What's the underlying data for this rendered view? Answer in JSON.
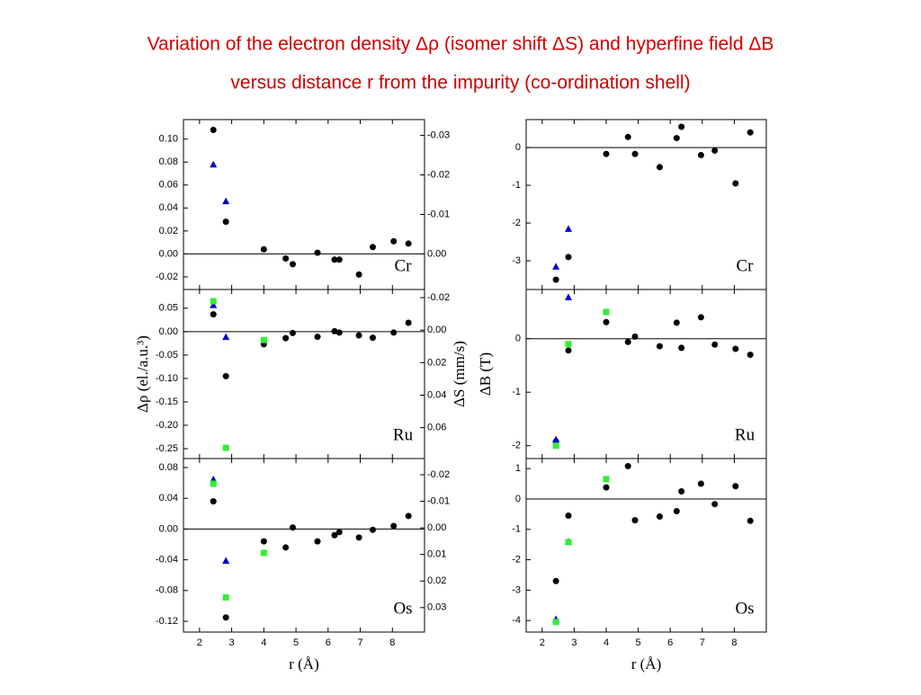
{
  "title": [
    "Variation of the electron density Δρ (isomer shift ΔS) and hyperfine field ΔB",
    "versus distance r from the impurity (co-ordination shell)"
  ],
  "chart_data": [
    {
      "type": "scatter",
      "annotation": "Cr",
      "xlim": [
        1.5,
        9
      ],
      "xticks": [
        2,
        3,
        4,
        5,
        6,
        7,
        8
      ],
      "ylim": [
        -0.031,
        0.117
      ],
      "yticks": [
        {
          "value": 0.1,
          "label": "0.10"
        },
        0.08,
        0.06,
        0.04,
        0.02,
        {
          "value": 0,
          "label": "0.00"
        },
        -0.02
      ],
      "y2lim": [
        0.009,
        -0.034
      ],
      "y2ticks": [
        -0.03,
        -0.02,
        -0.01,
        {
          "value": 0,
          "label": "0.00"
        }
      ],
      "series": [
        {
          "color": "#000000",
          "marker": "circle",
          "x": [
            2.43,
            2.82,
            4.0,
            4.68,
            4.9,
            5.67,
            6.2,
            6.35,
            6.96,
            7.39,
            8.04,
            8.5
          ],
          "values": [
            0.108,
            0.028,
            0.004,
            -0.004,
            -0.009,
            0.001,
            -0.005,
            -0.005,
            -0.018,
            0.006,
            0.011,
            0.009
          ]
        },
        {
          "color": "#0000cc",
          "marker": "triangle",
          "x": [
            2.43,
            2.82
          ],
          "values": [
            0.078,
            0.046
          ]
        }
      ]
    },
    {
      "type": "scatter",
      "annotation": "Ru",
      "xlim": [
        1.5,
        9
      ],
      "xticks": [
        2,
        3,
        4,
        5,
        6,
        7,
        8
      ],
      "ylim": [
        -0.271,
        0.09
      ],
      "yticks": [
        0.05,
        {
          "value": 0,
          "label": "0.00"
        },
        -0.05,
        {
          "value": -0.1,
          "label": "-0.10"
        },
        -0.15,
        {
          "value": -0.2,
          "label": "-0.20"
        },
        -0.25
      ],
      "y2lim": [
        0.079,
        -0.025
      ],
      "y2ticks": [
        -0.02,
        {
          "value": 0,
          "label": "0.00"
        },
        0.02,
        0.04,
        0.06
      ],
      "ylabel": "Δρ (el./a.u.³)",
      "y2label": "ΔS (mm/s)",
      "series": [
        {
          "color": "#000000",
          "marker": "circle",
          "x": [
            2.43,
            2.82,
            4.0,
            4.68,
            4.9,
            5.67,
            6.2,
            6.35,
            6.96,
            7.39,
            8.04,
            8.5
          ],
          "values": [
            0.037,
            -0.095,
            -0.027,
            -0.014,
            -0.003,
            -0.011,
            0.001,
            -0.002,
            -0.008,
            -0.013,
            -0.002,
            0.019
          ]
        },
        {
          "color": "#0000cc",
          "marker": "triangle",
          "x": [
            2.43,
            2.82
          ],
          "values": [
            0.057,
            -0.011
          ]
        },
        {
          "color": "#33ee33",
          "marker": "square",
          "x": [
            2.43,
            2.82,
            4.0
          ],
          "values": [
            0.065,
            -0.248,
            -0.018
          ]
        }
      ]
    },
    {
      "type": "scatter",
      "annotation": "Os",
      "xlim": [
        1.5,
        9
      ],
      "xticks": [
        2,
        3,
        4,
        5,
        6,
        7,
        8
      ],
      "xlabel": "r (Å)",
      "ylim": [
        -0.134,
        0.0917
      ],
      "yticks": [
        0.08,
        0.04,
        {
          "value": 0,
          "label": "0.00"
        },
        -0.04,
        -0.08,
        -0.12
      ],
      "y2lim": [
        0.0392,
        -0.0261
      ],
      "y2ticks": [
        -0.02,
        -0.01,
        {
          "value": 0,
          "label": "0.00"
        },
        0.01,
        0.02,
        0.03
      ],
      "series": [
        {
          "color": "#000000",
          "marker": "circle",
          "x": [
            2.43,
            2.82,
            4.0,
            4.68,
            4.9,
            5.67,
            6.2,
            6.35,
            6.96,
            7.39,
            8.04,
            8.5
          ],
          "values": [
            0.036,
            -0.115,
            -0.016,
            -0.024,
            0.002,
            -0.016,
            -0.008,
            -0.004,
            -0.011,
            -0.001,
            0.004,
            0.017
          ]
        },
        {
          "color": "#0000cc",
          "marker": "triangle",
          "x": [
            2.43,
            2.82
          ],
          "values": [
            0.065,
            -0.041
          ]
        },
        {
          "color": "#33ee33",
          "marker": "square",
          "x": [
            2.43,
            2.82,
            4.0
          ],
          "values": [
            0.059,
            -0.089,
            -0.031
          ]
        }
      ]
    },
    {
      "type": "scatter",
      "annotation": "Cr",
      "xlim": [
        1.5,
        9
      ],
      "xticks": [
        2,
        3,
        4,
        5,
        6,
        7,
        8
      ],
      "ylim": [
        -3.76,
        0.74
      ],
      "yticks": [
        0,
        -1,
        -2,
        -3
      ],
      "series": [
        {
          "color": "#000000",
          "marker": "circle",
          "x": [
            2.43,
            2.82,
            4.0,
            4.68,
            4.9,
            5.67,
            6.2,
            6.35,
            6.96,
            7.39,
            8.04,
            8.5
          ],
          "values": [
            -3.5,
            -2.9,
            -0.17,
            0.28,
            -0.17,
            -0.52,
            0.25,
            0.55,
            -0.2,
            -0.08,
            -0.95,
            0.4
          ]
        },
        {
          "color": "#0000cc",
          "marker": "triangle",
          "x": [
            2.43,
            2.82
          ],
          "values": [
            -3.15,
            -2.15
          ]
        }
      ]
    },
    {
      "type": "scatter",
      "annotation": "Ru",
      "xlim": [
        1.5,
        9
      ],
      "xticks": [
        2,
        3,
        4,
        5,
        6,
        7,
        8
      ],
      "ylim": [
        -2.24,
        0.92
      ],
      "yticks": [
        0,
        -1,
        -2
      ],
      "ylabel": "ΔB (T)",
      "series": [
        {
          "color": "#000000",
          "marker": "circle",
          "x": [
            2.43,
            2.82,
            4.0,
            4.68,
            4.9,
            5.67,
            6.2,
            6.35,
            6.96,
            7.39,
            8.04,
            8.5
          ],
          "values": [
            -1.92,
            -0.22,
            0.31,
            -0.06,
            0.04,
            -0.14,
            0.3,
            -0.17,
            0.4,
            -0.11,
            -0.19,
            -0.3
          ]
        },
        {
          "color": "#0000cc",
          "marker": "triangle",
          "x": [
            2.43,
            2.82
          ],
          "values": [
            -1.88,
            0.78
          ]
        },
        {
          "color": "#33ee33",
          "marker": "square",
          "x": [
            2.43,
            2.82,
            4.0
          ],
          "values": [
            -2.0,
            -0.1,
            0.5
          ]
        }
      ]
    },
    {
      "type": "scatter",
      "annotation": "Os",
      "xlim": [
        1.5,
        9
      ],
      "xticks": [
        2,
        3,
        4,
        5,
        6,
        7,
        8
      ],
      "xlabel": "r (Å)",
      "ylim": [
        -4.38,
        1.33
      ],
      "yticks": [
        1,
        0,
        -1,
        -2,
        -3,
        -4
      ],
      "series": [
        {
          "color": "#000000",
          "marker": "circle",
          "x": [
            2.43,
            2.82,
            4.0,
            4.68,
            4.9,
            5.67,
            6.2,
            6.35,
            6.96,
            7.39,
            8.04,
            8.5
          ],
          "values": [
            -2.7,
            -0.55,
            0.38,
            1.08,
            -0.7,
            -0.58,
            -0.4,
            0.25,
            0.5,
            -0.17,
            0.42,
            -0.72
          ]
        },
        {
          "color": "#0000cc",
          "marker": "triangle",
          "x": [
            2.43,
            2.82
          ],
          "values": [
            -3.95,
            -1.4
          ]
        },
        {
          "color": "#33ee33",
          "marker": "square",
          "x": [
            2.43,
            2.82,
            4.0
          ],
          "values": [
            -4.05,
            -1.42,
            0.65
          ]
        }
      ]
    }
  ]
}
